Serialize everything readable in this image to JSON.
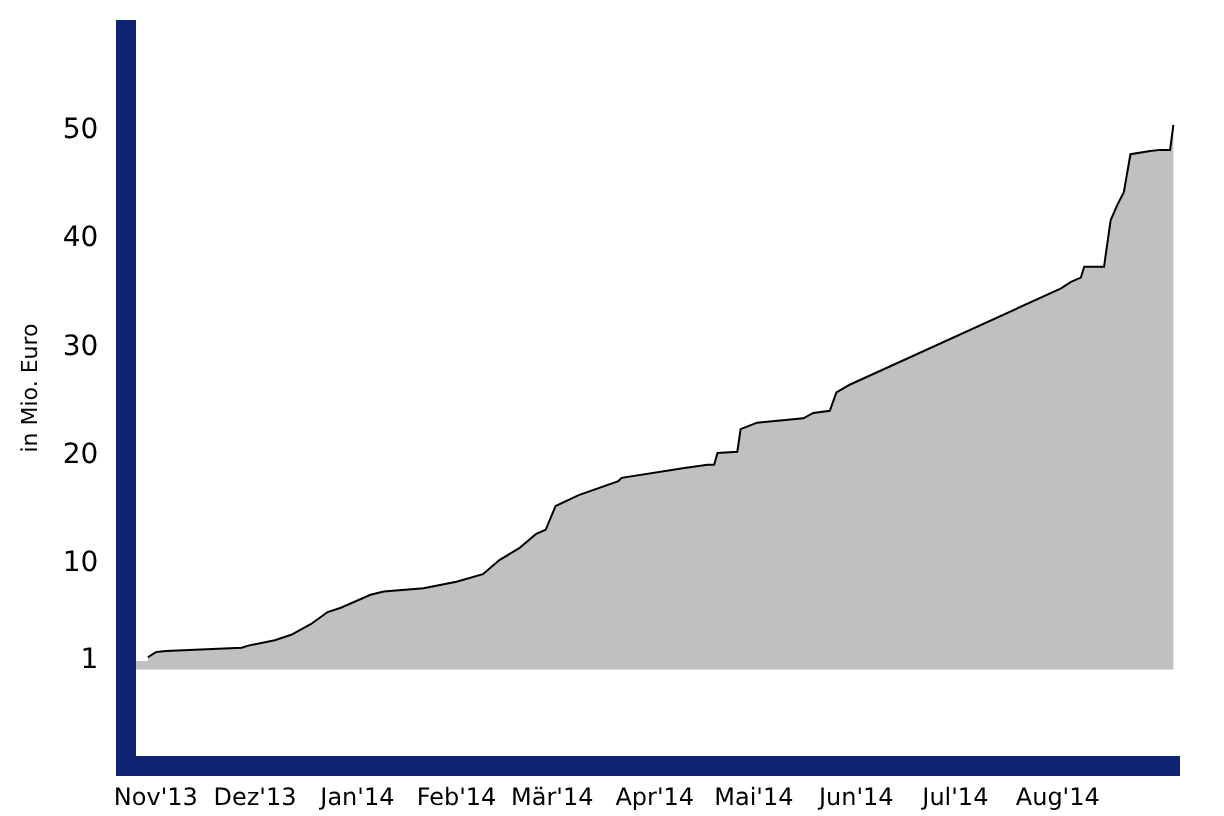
{
  "chart_data": {
    "type": "area",
    "ylabel": "in Mio. Euro",
    "x": [
      "2013-11-10",
      "2013-11-13",
      "2013-11-16",
      "2013-11-19",
      "2013-12-12",
      "2013-12-14",
      "2013-12-22",
      "2013-12-27",
      "2014-01-02",
      "2014-01-07",
      "2014-01-11",
      "2014-01-20",
      "2014-01-24",
      "2014-02-05",
      "2014-02-15",
      "2014-02-23",
      "2014-02-28",
      "2014-03-06",
      "2014-03-11",
      "2014-03-14",
      "2014-03-17",
      "2014-03-24",
      "2014-04-05",
      "2014-04-06",
      "2014-04-25",
      "2014-05-02",
      "2014-05-04",
      "2014-05-05",
      "2014-05-11",
      "2014-05-12",
      "2014-05-17",
      "2014-05-31",
      "2014-06-03",
      "2014-06-08",
      "2014-06-10",
      "2014-06-14",
      "2014-08-17",
      "2014-08-20",
      "2014-08-23",
      "2014-08-24",
      "2014-08-30",
      "2014-09-01",
      "2014-09-03",
      "2014-09-05",
      "2014-09-07",
      "2014-09-13",
      "2014-09-16",
      "2014-09-19",
      "2014-09-20"
    ],
    "series": [
      {
        "color": "#c0c0c0",
        "values": [
          1.0,
          1.0,
          1.6,
          1.7,
          2.0,
          2.2,
          2.7,
          3.2,
          4.2,
          5.3,
          5.7,
          6.9,
          7.2,
          7.5,
          8.1,
          8.8,
          10.1,
          11.2,
          12.5,
          12.9,
          15.1,
          16.1,
          17.4,
          17.7,
          18.6,
          18.9,
          18.9,
          20.0,
          20.1,
          22.2,
          22.8,
          23.2,
          23.7,
          23.9,
          25.6,
          26.3,
          35.2,
          35.8,
          36.2,
          37.2,
          37.2,
          41.5,
          42.9,
          44.1,
          47.6,
          47.9,
          48.0,
          48.0,
          50.3
        ]
      }
    ],
    "xlim": [
      "2013-11-10",
      "2014-09-22"
    ],
    "xticks": [
      {
        "value": "2013-11-16",
        "label": "Nov'13"
      },
      {
        "value": "2013-12-16",
        "label": "Dez'13"
      },
      {
        "value": "2014-01-16",
        "label": "Jan'14"
      },
      {
        "value": "2014-02-15",
        "label": "Feb'14"
      },
      {
        "value": "2014-03-16",
        "label": "Mär'14"
      },
      {
        "value": "2014-04-16",
        "label": "Apr'14"
      },
      {
        "value": "2014-05-16",
        "label": "Mai'14"
      },
      {
        "value": "2014-06-16",
        "label": "Jun'14"
      },
      {
        "value": "2014-07-16",
        "label": "Jul'14"
      },
      {
        "value": "2014-08-16",
        "label": "Aug'14"
      }
    ],
    "ylim": [
      -8,
      60
    ],
    "yticks": [
      1,
      10,
      20,
      30,
      40,
      50
    ]
  }
}
